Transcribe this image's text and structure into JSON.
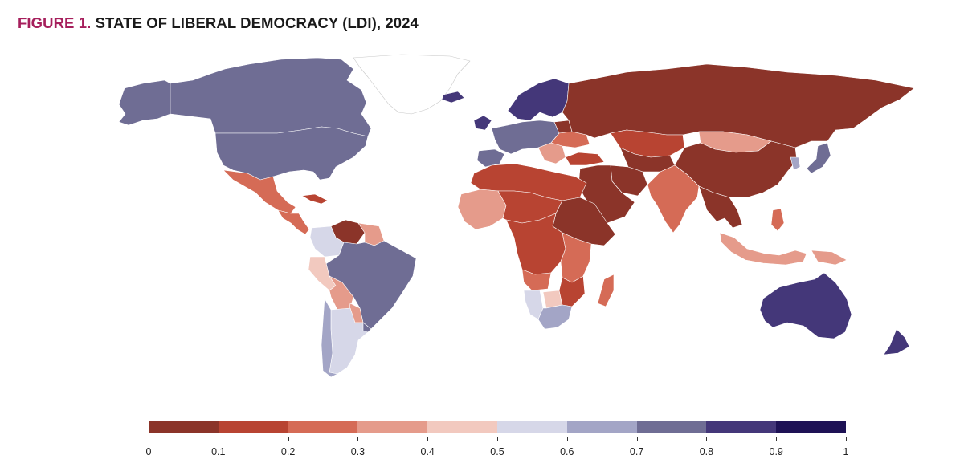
{
  "title": {
    "prefix": "FIGURE 1.",
    "text": "STATE OF LIBERAL DEMOCRACY (LDI), 2024"
  },
  "scale_colors": [
    "#8b3429",
    "#b84432",
    "#d56b56",
    "#e59b8b",
    "#f2c9bf",
    "#d6d7e8",
    "#a3a5c6",
    "#6f6d94",
    "#443779",
    "#1e1255"
  ],
  "legend": {
    "ticks": [
      "0",
      "0.1",
      "0.2",
      "0.3",
      "0.4",
      "0.5",
      "0.6",
      "0.7",
      "0.8",
      "0.9",
      "1"
    ]
  },
  "regions": [
    {
      "name": "Canada",
      "ldi_bin": 7
    },
    {
      "name": "United States",
      "ldi_bin": 7
    },
    {
      "name": "Alaska",
      "ldi_bin": 7
    },
    {
      "name": "Greenland",
      "ldi_bin": -1
    },
    {
      "name": "Mexico",
      "ldi_bin": 2
    },
    {
      "name": "Central America",
      "ldi_bin": 2
    },
    {
      "name": "Cuba",
      "ldi_bin": 1
    },
    {
      "name": "Venezuela",
      "ldi_bin": 0
    },
    {
      "name": "Colombia",
      "ldi_bin": 5
    },
    {
      "name": "Guyana",
      "ldi_bin": 3
    },
    {
      "name": "Brazil",
      "ldi_bin": 7
    },
    {
      "name": "Peru",
      "ldi_bin": 4
    },
    {
      "name": "Bolivia",
      "ldi_bin": 3
    },
    {
      "name": "Paraguay",
      "ldi_bin": 3
    },
    {
      "name": "Argentina",
      "ldi_bin": 5
    },
    {
      "name": "Chile",
      "ldi_bin": 6
    },
    {
      "name": "Uruguay",
      "ldi_bin": 7
    },
    {
      "name": "Iceland",
      "ldi_bin": 8
    },
    {
      "name": "Scandinavia",
      "ldi_bin": 8
    },
    {
      "name": "Ireland",
      "ldi_bin": 8
    },
    {
      "name": "Western Europe",
      "ldi_bin": 7
    },
    {
      "name": "Iberia",
      "ldi_bin": 7
    },
    {
      "name": "Balkans",
      "ldi_bin": 3
    },
    {
      "name": "Belarus",
      "ldi_bin": 0
    },
    {
      "name": "Ukraine",
      "ldi_bin": 2
    },
    {
      "name": "Turkey",
      "ldi_bin": 1
    },
    {
      "name": "Russia",
      "ldi_bin": 0
    },
    {
      "name": "Kazakhstan",
      "ldi_bin": 1
    },
    {
      "name": "Central Asia",
      "ldi_bin": 0
    },
    {
      "name": "Mongolia",
      "ldi_bin": 3
    },
    {
      "name": "China",
      "ldi_bin": 0
    },
    {
      "name": "Korea",
      "ldi_bin": 6
    },
    {
      "name": "Japan",
      "ldi_bin": 7
    },
    {
      "name": "Middle East",
      "ldi_bin": 0
    },
    {
      "name": "Iran",
      "ldi_bin": 0
    },
    {
      "name": "India",
      "ldi_bin": 2
    },
    {
      "name": "Southeast Asia",
      "ldi_bin": 0
    },
    {
      "name": "Indonesia",
      "ldi_bin": 3
    },
    {
      "name": "Philippines",
      "ldi_bin": 2
    },
    {
      "name": "Papua New Guinea",
      "ldi_bin": 3
    },
    {
      "name": "Australia",
      "ldi_bin": 8
    },
    {
      "name": "New Zealand",
      "ldi_bin": 8
    },
    {
      "name": "North Africa",
      "ldi_bin": 1
    },
    {
      "name": "Sahel",
      "ldi_bin": 1
    },
    {
      "name": "Sudan and Horn",
      "ldi_bin": 0
    },
    {
      "name": "West Africa",
      "ldi_bin": 3
    },
    {
      "name": "Central Africa",
      "ldi_bin": 1
    },
    {
      "name": "East Africa",
      "ldi_bin": 2
    },
    {
      "name": "Angola",
      "ldi_bin": 2
    },
    {
      "name": "Namibia",
      "ldi_bin": 5
    },
    {
      "name": "Botswana",
      "ldi_bin": 4
    },
    {
      "name": "South Africa",
      "ldi_bin": 6
    },
    {
      "name": "Mozambique",
      "ldi_bin": 1
    },
    {
      "name": "Madagascar",
      "ldi_bin": 2
    }
  ]
}
